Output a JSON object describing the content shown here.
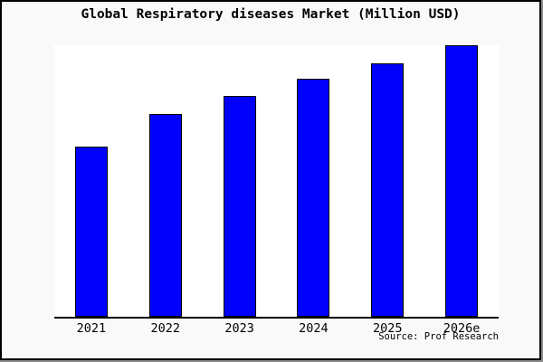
{
  "title": "Global Respiratory diseases Market (Million USD)",
  "source_note": "Source: Prof Research",
  "colors": {
    "bar_fill": "#0000fa",
    "bar_border": "#000000",
    "frame_background": "#f9f9f9",
    "plot_background": "#ffffff",
    "frame_border": "#000000",
    "shadow_edge": "#8c8c8c",
    "text": "#000000"
  },
  "chart_data": {
    "type": "bar",
    "title": "Global Respiratory diseases Market (Million USD)",
    "categories": [
      "2021",
      "2022",
      "2023",
      "2024",
      "2025",
      "2026e"
    ],
    "values": [
      62.8,
      74.8,
      81.4,
      87.7,
      93.4,
      100
    ],
    "value_units": "relative units (y-axis unlabeled in image; values normalized so 2026e = 100)",
    "xlabel": "",
    "ylabel": "",
    "ylim": [
      0,
      100
    ],
    "grid": false,
    "legend": false,
    "y_axis_ticks_visible": false,
    "bar_color": "#0000fa",
    "bar_border_color": "#000000"
  }
}
